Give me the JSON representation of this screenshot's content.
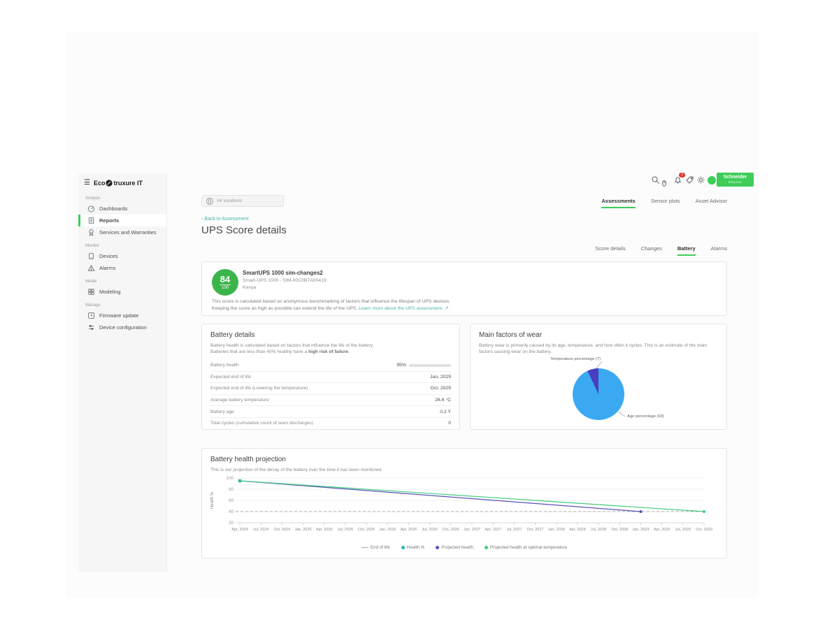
{
  "sidebar": {
    "logo_prefix": "Eco",
    "logo_suffix": "truxure IT",
    "sections": [
      {
        "label": "Analyze",
        "items": [
          {
            "label": "Dashboards",
            "icon": "dashboards-icon",
            "active": false
          },
          {
            "label": "Reports",
            "icon": "reports-icon",
            "active": true
          },
          {
            "label": "Services and Warranties",
            "icon": "services-icon",
            "active": false
          }
        ]
      },
      {
        "label": "Monitor",
        "items": [
          {
            "label": "Devices",
            "icon": "devices-icon",
            "active": false
          },
          {
            "label": "Alarms",
            "icon": "alarms-icon",
            "active": false
          }
        ]
      },
      {
        "label": "Model",
        "items": [
          {
            "label": "Modeling",
            "icon": "modeling-icon",
            "active": false
          }
        ]
      },
      {
        "label": "Manage",
        "items": [
          {
            "label": "Firmware update",
            "icon": "firmware-icon",
            "active": false
          },
          {
            "label": "Device configuration",
            "icon": "config-icon",
            "active": false
          }
        ]
      }
    ]
  },
  "header": {
    "notification_count": "1",
    "brand_line1": "Schneider",
    "brand_line2": "Electric",
    "icons": {
      "hamburger": "☰",
      "external_link": "↗",
      "chevron_left": "‹",
      "help_glyph": "?"
    }
  },
  "toolbar": {
    "location_filter": "All locations"
  },
  "page": {
    "back_link": "Back to Assessment",
    "title": "UPS Score details",
    "tabs": [
      "Assessments",
      "Sensor plots",
      "Asset Advisor"
    ],
    "active_tab": "Assessments",
    "subtabs": [
      "Score details",
      "Changes",
      "Battery",
      "Alarms"
    ],
    "active_subtab": "Battery"
  },
  "score_card": {
    "score": "84",
    "score_max": "100",
    "device_name": "SmartUPS 1000 sim-changes2",
    "device_model_serial": "Smart-UPS 1000 - SIM-00C0B7A00419",
    "location": "Kenya",
    "description_line1": "This score is calculated based on anonymous benchmarking of factors that influence the lifespan of UPS devices.",
    "description_line2": "Keeping the score as high as possible can extend the life of the UPS.",
    "learn_more": "Learn more about the UPS assessment."
  },
  "battery_details": {
    "title": "Battery details",
    "description_line1": "Battery health is calculated based on factors that influence the life of the battery.",
    "description_line2_prefix": "Batteries that are less than 40% healthy have a ",
    "description_line2_bold": "high risk of failure",
    "description_line2_suffix": ".",
    "rows": [
      {
        "label": "Battery health",
        "value": "95%",
        "bar_percent": 95
      },
      {
        "label": "Expected end of life",
        "value": "Jan, 2029"
      },
      {
        "label": "Expected end of life (Lowering the temperature)",
        "value": "Oct, 2029"
      },
      {
        "label": "Average battery temperature",
        "value": "26.6 °C"
      },
      {
        "label": "Battery age",
        "value": "0.2 Y"
      },
      {
        "label": "Total cycles (cumulative count of seen discharges)",
        "value": "0"
      }
    ]
  },
  "wear_card": {
    "title": "Main factors of wear",
    "description": "Battery wear is primarily caused by its age, temperature, and how often it cycles. This is an estimate of the main factors causing wear on the battery."
  },
  "projection_card": {
    "title": "Battery health projection",
    "description": "This is our projection of the decay of the battery over the time it has been monitored."
  },
  "chart_data": [
    {
      "type": "pie",
      "title": "Main factors of wear",
      "slices": [
        {
          "label": "Age percentage (93)",
          "value": 93,
          "color": "#3aa9f2"
        },
        {
          "label": "Temperature percentage (7)",
          "value": 7,
          "color": "#4a3fbf"
        }
      ],
      "start_angle_deg": 0,
      "direction": "clockwise"
    },
    {
      "type": "line",
      "title": "Battery health projection",
      "xlabel": "",
      "ylabel": "Health %",
      "ylim": [
        20,
        100
      ],
      "yticks": [
        20,
        40,
        60,
        80,
        100
      ],
      "grid": true,
      "legend_position": "bottom",
      "x": [
        "Apr, 2024",
        "Jul, 2024",
        "Oct, 2024",
        "Jan, 2025",
        "Apr, 2025",
        "Jul, 2025",
        "Oct, 2025",
        "Jan, 2026",
        "Apr, 2026",
        "Jul, 2026",
        "Oct, 2026",
        "Jan, 2027",
        "Apr, 2027",
        "Jul, 2027",
        "Oct, 2027",
        "Jan, 2028",
        "Apr, 2028",
        "Jul, 2028",
        "Oct, 2028",
        "Jan, 2029",
        "Apr, 2029",
        "Jul, 2029",
        "Oct, 2029"
      ],
      "series": [
        {
          "name": "End of life",
          "kind": "hline",
          "value": 40,
          "color": "#a8a8a8",
          "dash": true
        },
        {
          "name": "Health %",
          "kind": "points",
          "color": "#2fb3a9",
          "points": [
            {
              "x": "Apr, 2024",
              "y": 95
            }
          ]
        },
        {
          "name": "Projected health",
          "kind": "line",
          "color": "#5a52b8",
          "points": [
            {
              "x": "Apr, 2024",
              "y": 95
            },
            {
              "x": "Jan, 2029",
              "y": 40
            }
          ]
        },
        {
          "name": "Projected health at optimal temperature",
          "kind": "line",
          "color": "#42cd7e",
          "points": [
            {
              "x": "Apr, 2024",
              "y": 95
            },
            {
              "x": "Oct, 2029",
              "y": 40
            }
          ]
        }
      ]
    }
  ]
}
